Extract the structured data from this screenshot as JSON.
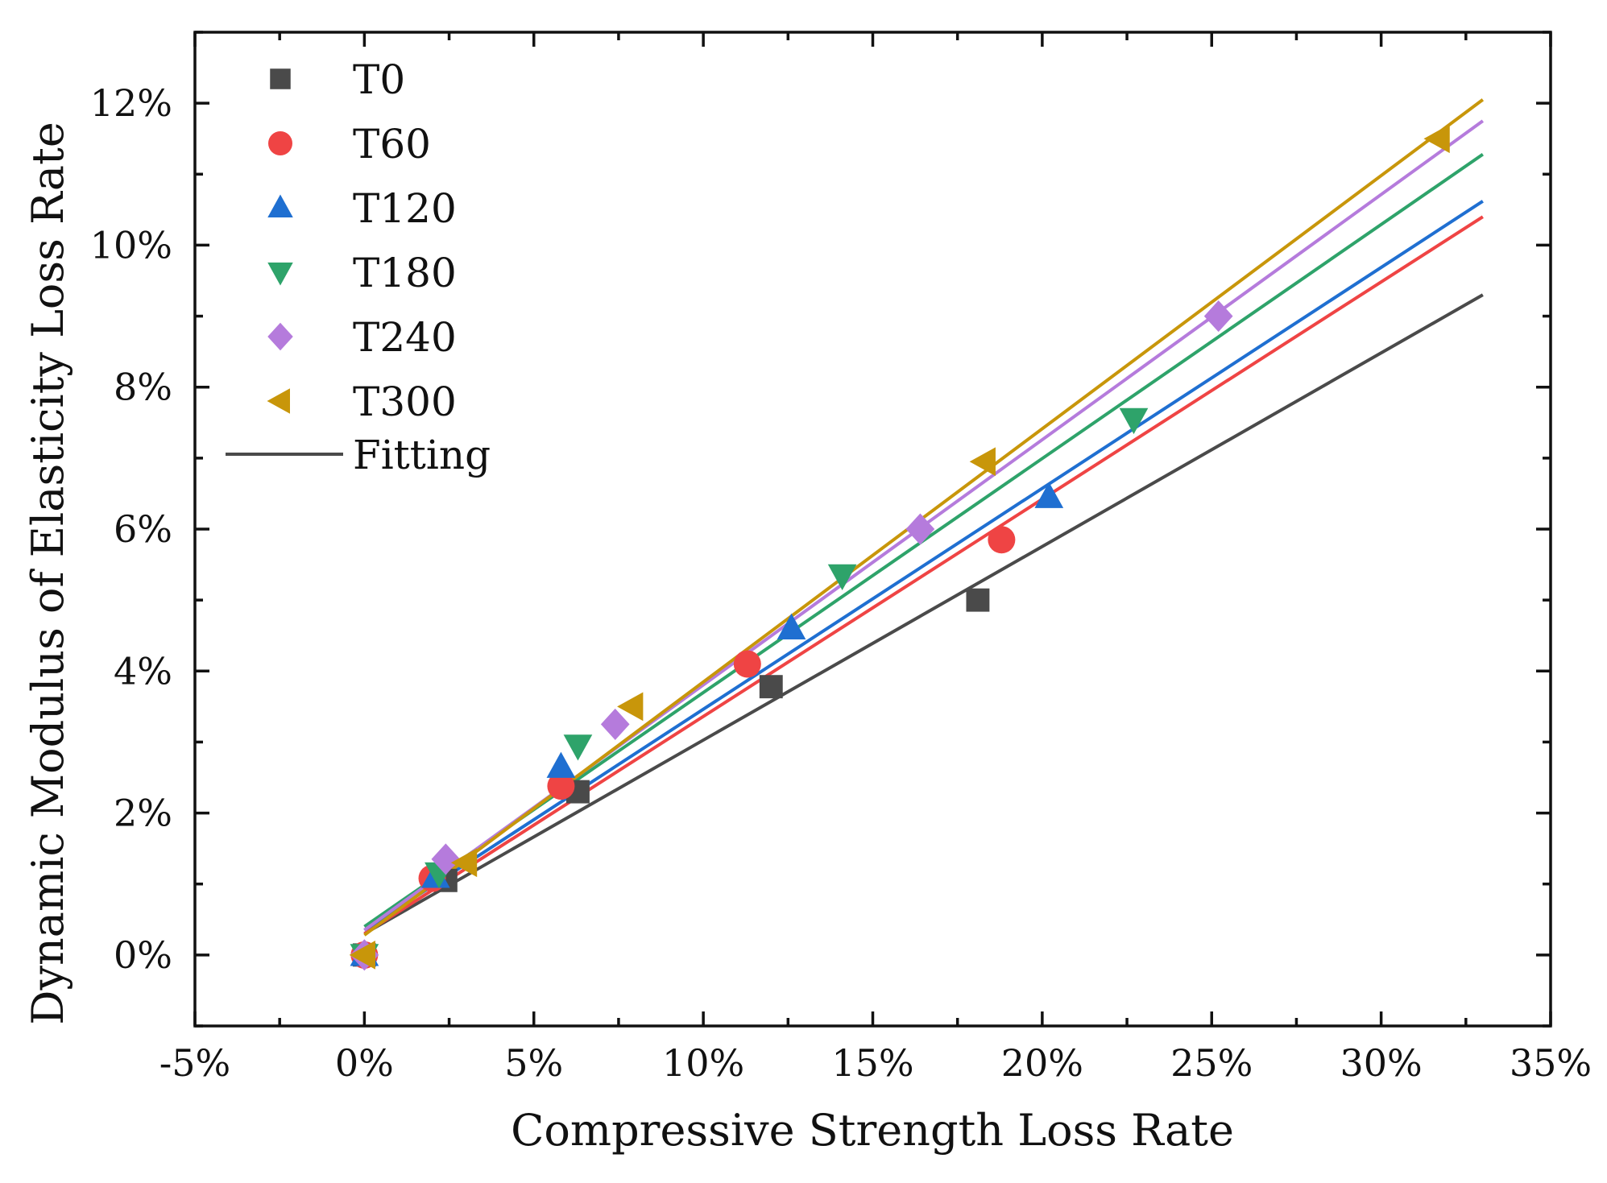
{
  "chart_data": {
    "type": "scatter",
    "title": "",
    "xlabel": "Compressive Strength Loss Rate",
    "ylabel": "Dynamic Modulus of Elasticity Loss Rate",
    "xlim": [
      -5,
      35
    ],
    "ylim": [
      -1,
      13
    ],
    "x_ticks": [
      -5,
      0,
      5,
      10,
      15,
      20,
      25,
      30,
      35
    ],
    "x_tick_labels": [
      "-5%",
      "0%",
      "5%",
      "10%",
      "15%",
      "20%",
      "25%",
      "30%",
      "35%"
    ],
    "y_ticks": [
      0,
      2,
      4,
      6,
      8,
      10,
      12
    ],
    "y_tick_labels": [
      "0%",
      "2%",
      "4%",
      "6%",
      "8%",
      "10%",
      "12%"
    ],
    "grid": false,
    "legend_position": "top-left",
    "fit_legend_label": "Fitting",
    "series": [
      {
        "name": "T0",
        "marker": "square",
        "color": "#4a4a4a",
        "points": [
          [
            0,
            0
          ],
          [
            2.4,
            1.05
          ],
          [
            6.3,
            2.3
          ],
          [
            12.0,
            3.78
          ],
          [
            18.1,
            5.0
          ]
        ],
        "fit": {
          "x_start": 0,
          "x_end": 33,
          "y_start": 0.3,
          "y_end": 9.3
        }
      },
      {
        "name": "T60",
        "marker": "circle",
        "color": "#ef4444",
        "points": [
          [
            0,
            0
          ],
          [
            2.0,
            1.08
          ],
          [
            5.8,
            2.38
          ],
          [
            11.3,
            4.1
          ],
          [
            18.8,
            5.85
          ]
        ],
        "fit": {
          "x_start": 0,
          "x_end": 33,
          "y_start": 0.3,
          "y_end": 10.4
        }
      },
      {
        "name": "T120",
        "marker": "triangle-up",
        "color": "#1f6fd1",
        "points": [
          [
            0,
            0
          ],
          [
            2.1,
            1.1
          ],
          [
            5.8,
            2.65
          ],
          [
            12.6,
            4.6
          ],
          [
            20.2,
            6.45
          ]
        ],
        "fit": {
          "x_start": 0,
          "x_end": 33,
          "y_start": 0.35,
          "y_end": 10.62
        }
      },
      {
        "name": "T180",
        "marker": "triangle-down",
        "color": "#2ea36a",
        "points": [
          [
            0,
            0
          ],
          [
            2.2,
            1.15
          ],
          [
            6.3,
            2.95
          ],
          [
            14.1,
            5.35
          ],
          [
            22.7,
            7.55
          ]
        ],
        "fit": {
          "x_start": 0,
          "x_end": 33,
          "y_start": 0.4,
          "y_end": 11.28
        }
      },
      {
        "name": "T240",
        "marker": "diamond",
        "color": "#b57bdc",
        "points": [
          [
            0,
            0
          ],
          [
            2.4,
            1.35
          ],
          [
            7.4,
            3.25
          ],
          [
            16.4,
            6.0
          ],
          [
            25.2,
            9.0
          ]
        ],
        "fit": {
          "x_start": 0,
          "x_end": 33,
          "y_start": 0.35,
          "y_end": 11.75
        }
      },
      {
        "name": "T300",
        "marker": "triangle-left",
        "color": "#c8960a",
        "points": [
          [
            0,
            0
          ],
          [
            3.0,
            1.3
          ],
          [
            7.9,
            3.5
          ],
          [
            18.3,
            6.95
          ],
          [
            31.7,
            11.5
          ]
        ],
        "fit": {
          "x_start": 0,
          "x_end": 33,
          "y_start": 0.28,
          "y_end": 12.05
        }
      }
    ]
  }
}
